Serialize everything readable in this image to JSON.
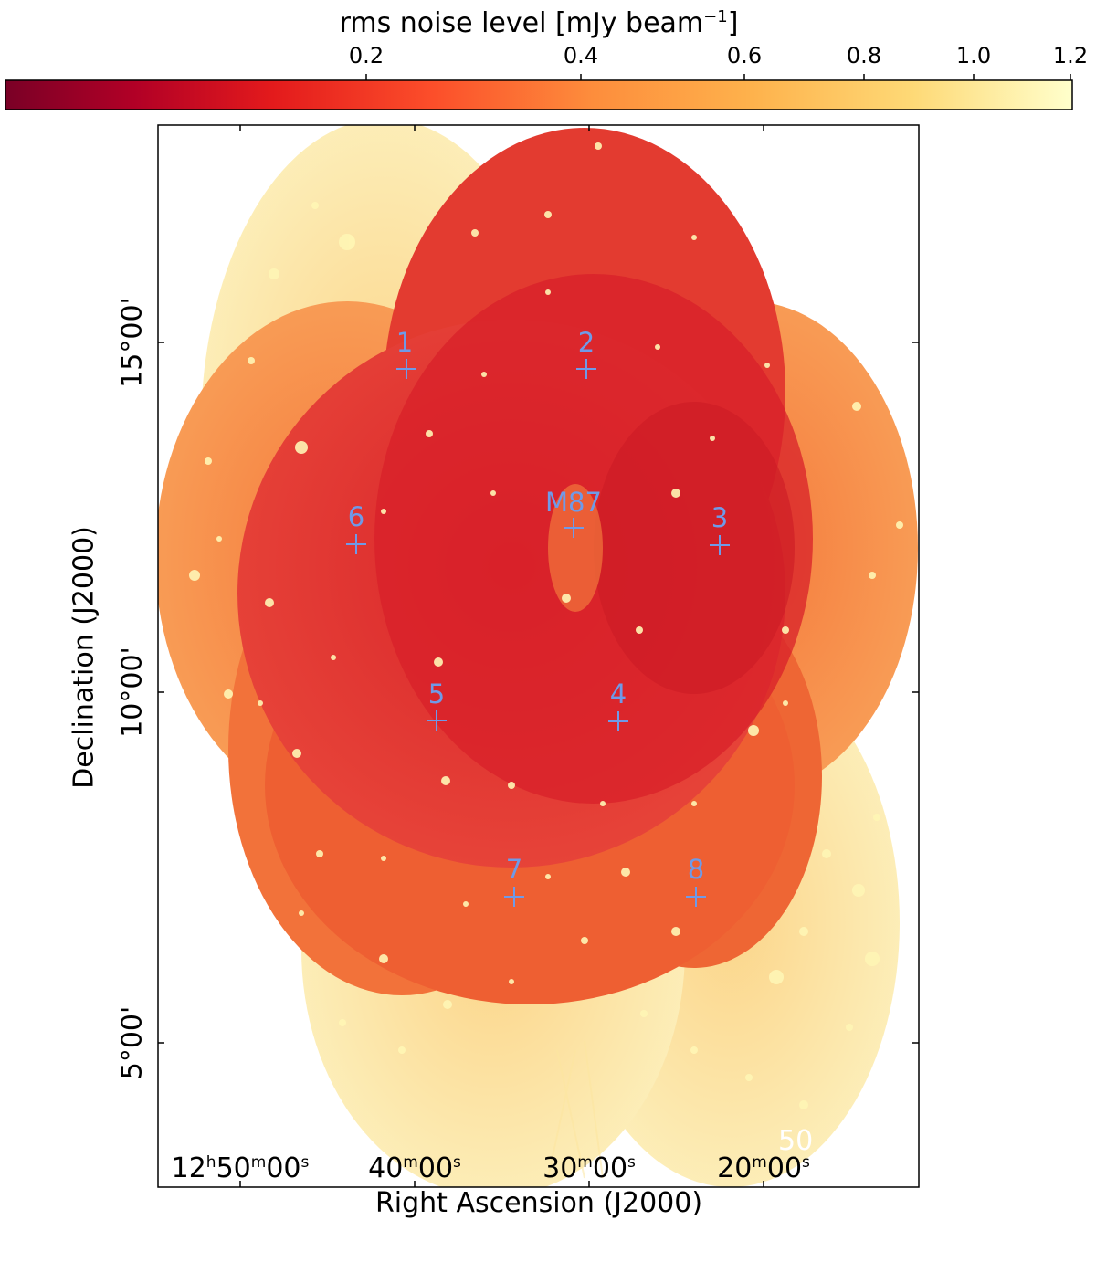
{
  "colorbar": {
    "title": "rms noise level [mJy beam",
    "title_sup": "−1",
    "title_end": "]",
    "ticks": [
      "0.2",
      "0.4",
      "0.6",
      "0.8",
      "1.0",
      "1.2"
    ],
    "colormap": "YlOrRd-reversed",
    "range_mjy": [
      0.0,
      1.2
    ]
  },
  "axes": {
    "ylabel": "Declination (J2000)",
    "xlabel": "Right Ascension (J2000)",
    "yticks": [
      "15°00'",
      "10°00'",
      "5°00'"
    ],
    "xticks": [
      {
        "main": "12",
        "h": "h",
        "min": "50",
        "m": "m",
        "sec": "00",
        "s": "s"
      },
      {
        "main": "",
        "h": "",
        "min": "40",
        "m": "m",
        "sec": "00",
        "s": "s"
      },
      {
        "main": "",
        "h": "",
        "min": "30",
        "m": "m",
        "sec": "00",
        "s": "s"
      },
      {
        "main": "",
        "h": "",
        "min": "20",
        "m": "m",
        "sec": "00",
        "s": "s"
      }
    ]
  },
  "markers": [
    {
      "label": "1"
    },
    {
      "label": "2"
    },
    {
      "label": "M87"
    },
    {
      "label": "6"
    },
    {
      "label": "3"
    },
    {
      "label": "5"
    },
    {
      "label": "4"
    },
    {
      "label": "7"
    },
    {
      "label": "8"
    }
  ],
  "marker_color": "#6f9ae8",
  "scalebar_text": "50"
}
